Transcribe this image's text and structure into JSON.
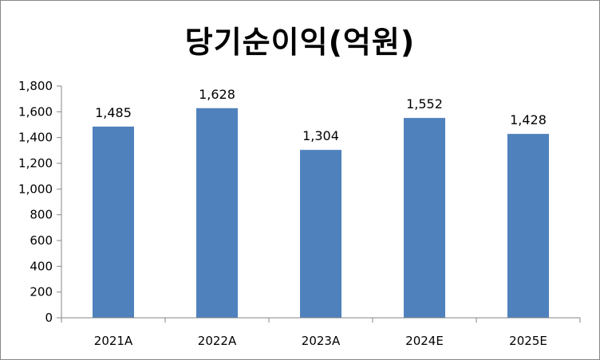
{
  "chart_data": {
    "type": "bar",
    "title": "당기순이익(억원)",
    "categories": [
      "2021A",
      "2022A",
      "2023A",
      "2024E",
      "2025E"
    ],
    "values": [
      1485,
      1628,
      1304,
      1552,
      1428
    ],
    "value_labels": [
      "1,485",
      "1,628",
      "1,304",
      "1,552",
      "1,428"
    ],
    "y_ticks": [
      "0",
      "200",
      "400",
      "600",
      "800",
      "1,000",
      "1,200",
      "1,400",
      "1,600",
      "1,800"
    ],
    "y_tick_values": [
      0,
      200,
      400,
      600,
      800,
      1000,
      1200,
      1400,
      1600,
      1800
    ],
    "ylim": [
      0,
      1800
    ],
    "xlabel": "",
    "ylabel": "",
    "grid": false,
    "legend": "none",
    "bar_color": "#4F81BD"
  }
}
